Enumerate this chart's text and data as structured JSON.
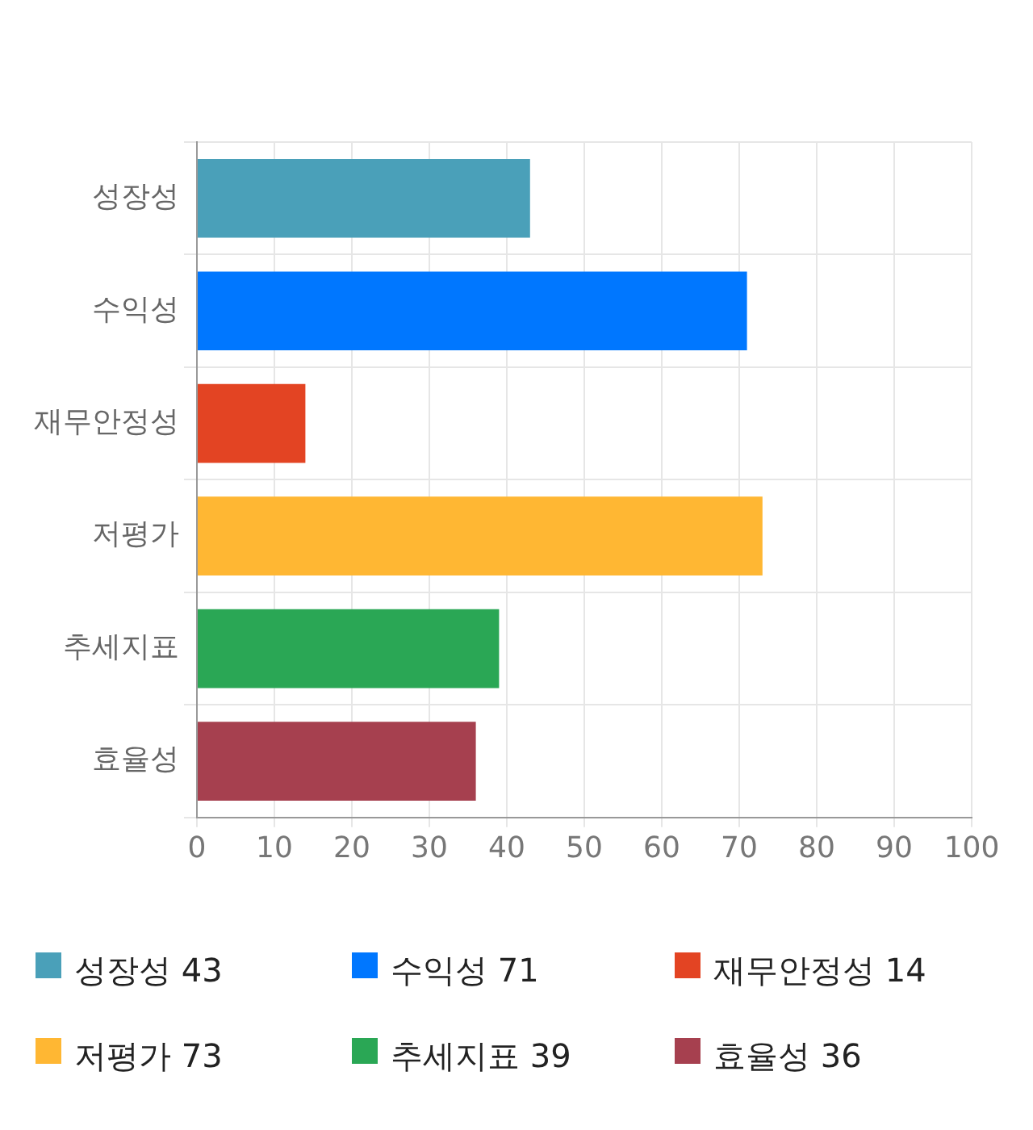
{
  "chart_data": {
    "type": "bar",
    "orientation": "horizontal",
    "categories": [
      "성장성",
      "수익성",
      "재무안정성",
      "저평가",
      "추세지표",
      "효율성"
    ],
    "values": [
      43,
      71,
      14,
      73,
      39,
      36
    ],
    "value_labels": [
      "43",
      "71",
      "14",
      "73",
      "39",
      "36"
    ],
    "colors": [
      "#4aa0b9",
      "#0077ff",
      "#e34423",
      "#ffb733",
      "#2aa755",
      "#a6404f"
    ],
    "xlim": [
      0,
      100
    ],
    "xticks": [
      0,
      10,
      20,
      30,
      40,
      50,
      60,
      70,
      80,
      90,
      100
    ],
    "grid": true
  }
}
